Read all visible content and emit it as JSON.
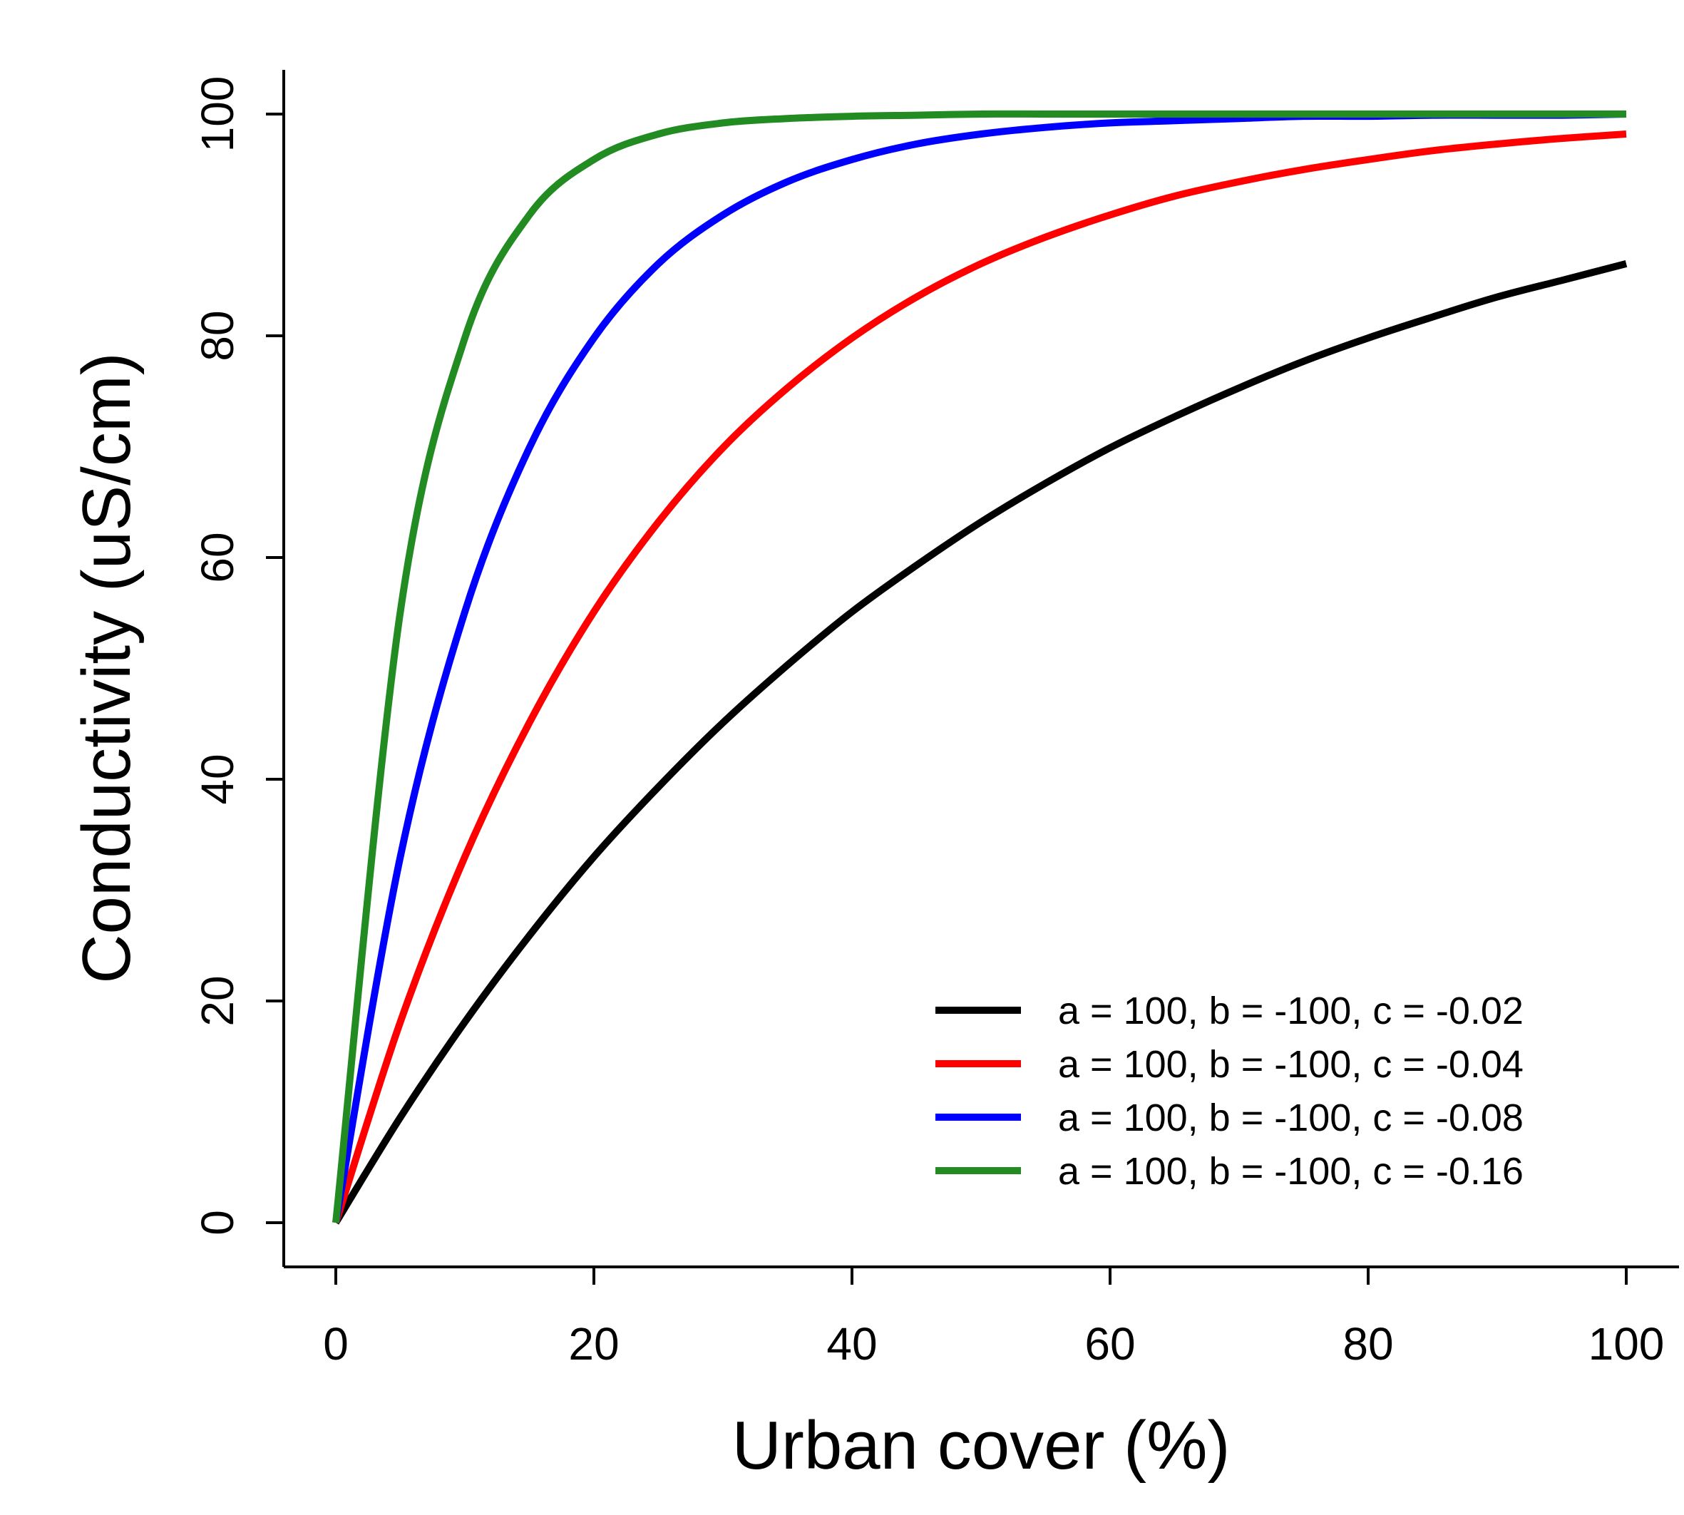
{
  "chart_data": {
    "type": "line",
    "title": "",
    "xlabel": "Urban cover (%)",
    "ylabel": "Conductivity (uS/cm)",
    "xlim": [
      0,
      100
    ],
    "ylim": [
      0,
      100
    ],
    "xticks": [
      0,
      20,
      40,
      60,
      80,
      100
    ],
    "yticks": [
      0,
      20,
      40,
      60,
      80,
      100
    ],
    "grid": false,
    "legend_position": "bottom-right",
    "x": [
      0,
      5,
      10,
      15,
      20,
      25,
      30,
      35,
      40,
      45,
      50,
      55,
      60,
      65,
      70,
      75,
      80,
      85,
      90,
      95,
      100
    ],
    "series": [
      {
        "name": "a = 100, b = -100, c = -0.02",
        "color": "#000000",
        "values": [
          0,
          9.5,
          18.1,
          25.9,
          33.0,
          39.3,
          45.1,
          50.3,
          55.1,
          59.3,
          63.2,
          66.7,
          69.9,
          72.7,
          75.3,
          77.7,
          79.8,
          81.7,
          83.5,
          85.0,
          86.5
        ]
      },
      {
        "name": "a = 100, b = -100, c = -0.04",
        "color": "#ff0000",
        "values": [
          0,
          18.1,
          33.0,
          45.1,
          55.1,
          63.2,
          69.9,
          75.3,
          79.8,
          83.5,
          86.5,
          88.9,
          90.9,
          92.6,
          93.9,
          95.0,
          95.9,
          96.7,
          97.3,
          97.8,
          98.2
        ]
      },
      {
        "name": "a = 100, b = -100, c = -0.08",
        "color": "#0000ff",
        "values": [
          0,
          33.0,
          55.1,
          69.9,
          79.8,
          86.5,
          90.9,
          93.9,
          95.9,
          97.3,
          98.2,
          98.8,
          99.2,
          99.4,
          99.6,
          99.8,
          99.8,
          99.9,
          99.9,
          99.9,
          100.0
        ]
      },
      {
        "name": "a = 100, b = -100, c = -0.16",
        "color": "#228b22",
        "values": [
          0,
          55.1,
          79.8,
          90.9,
          95.9,
          98.2,
          99.2,
          99.6,
          99.8,
          99.9,
          100.0,
          100.0,
          100.0,
          100.0,
          100.0,
          100.0,
          100.0,
          100.0,
          100.0,
          100.0,
          100.0
        ]
      }
    ]
  }
}
